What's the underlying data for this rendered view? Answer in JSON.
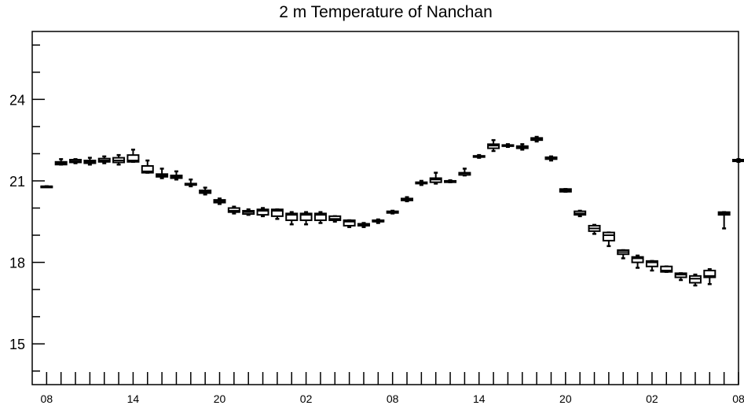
{
  "chart_data": {
    "type": "boxplot",
    "title": "2 m Temperature of Nanchan",
    "xlabel": "",
    "ylabel": "",
    "ylim": [
      13.5,
      26.5
    ],
    "xlim": [
      -1,
      48
    ],
    "y_ticks": [
      15,
      18,
      21,
      24
    ],
    "y_tick_labels": [
      "15",
      "18",
      "21",
      "24"
    ],
    "x_tick_labels": [
      {
        "x": 0,
        "label": "08"
      },
      {
        "x": 6,
        "label": "14"
      },
      {
        "x": 12,
        "label": "20"
      },
      {
        "x": 18,
        "label": "02"
      },
      {
        "x": 24,
        "label": "08"
      },
      {
        "x": 30,
        "label": "14"
      },
      {
        "x": 36,
        "label": "20"
      },
      {
        "x": 42,
        "label": "02"
      },
      {
        "x": 48,
        "label": "08"
      }
    ],
    "series": [
      {
        "x": 0,
        "min": 20.8,
        "q1": 20.8,
        "median": 20.8,
        "q3": 20.8,
        "max": 20.8
      },
      {
        "x": 1,
        "min": 21.6,
        "q1": 21.6,
        "median": 21.65,
        "q3": 21.7,
        "max": 21.8
      },
      {
        "x": 2,
        "min": 21.65,
        "q1": 21.68,
        "median": 21.72,
        "q3": 21.78,
        "max": 21.8
      },
      {
        "x": 3,
        "min": 21.6,
        "q1": 21.65,
        "median": 21.7,
        "q3": 21.75,
        "max": 21.85
      },
      {
        "x": 4,
        "min": 21.65,
        "q1": 21.7,
        "median": 21.75,
        "q3": 21.82,
        "max": 21.9
      },
      {
        "x": 5,
        "min": 21.6,
        "q1": 21.68,
        "median": 21.75,
        "q3": 21.85,
        "max": 21.95
      },
      {
        "x": 6,
        "min": 21.7,
        "q1": 21.7,
        "median": 21.75,
        "q3": 21.95,
        "max": 22.15
      },
      {
        "x": 7,
        "min": 21.3,
        "q1": 21.3,
        "median": 21.35,
        "q3": 21.55,
        "max": 21.75
      },
      {
        "x": 8,
        "min": 21.1,
        "q1": 21.15,
        "median": 21.2,
        "q3": 21.25,
        "max": 21.45
      },
      {
        "x": 9,
        "min": 21.05,
        "q1": 21.1,
        "median": 21.15,
        "q3": 21.2,
        "max": 21.35
      },
      {
        "x": 10,
        "min": 20.8,
        "q1": 20.85,
        "median": 20.85,
        "q3": 20.9,
        "max": 21.05
      },
      {
        "x": 11,
        "min": 20.5,
        "q1": 20.55,
        "median": 20.6,
        "q3": 20.65,
        "max": 20.75
      },
      {
        "x": 12,
        "min": 20.15,
        "q1": 20.2,
        "median": 20.25,
        "q3": 20.3,
        "max": 20.35
      },
      {
        "x": 13,
        "min": 19.8,
        "q1": 19.85,
        "median": 19.9,
        "q3": 20.0,
        "max": 20.05
      },
      {
        "x": 14,
        "min": 19.75,
        "q1": 19.78,
        "median": 19.85,
        "q3": 19.9,
        "max": 19.95
      },
      {
        "x": 15,
        "min": 19.7,
        "q1": 19.75,
        "median": 19.9,
        "q3": 19.95,
        "max": 20.0
      },
      {
        "x": 16,
        "min": 19.6,
        "q1": 19.7,
        "median": 19.9,
        "q3": 19.95,
        "max": 19.95
      },
      {
        "x": 17,
        "min": 19.4,
        "q1": 19.55,
        "median": 19.75,
        "q3": 19.8,
        "max": 19.85
      },
      {
        "x": 18,
        "min": 19.4,
        "q1": 19.55,
        "median": 19.75,
        "q3": 19.8,
        "max": 19.85
      },
      {
        "x": 19,
        "min": 19.45,
        "q1": 19.55,
        "median": 19.75,
        "q3": 19.8,
        "max": 19.85
      },
      {
        "x": 20,
        "min": 19.5,
        "q1": 19.55,
        "median": 19.6,
        "q3": 19.7,
        "max": 19.7
      },
      {
        "x": 21,
        "min": 19.3,
        "q1": 19.35,
        "median": 19.5,
        "q3": 19.55,
        "max": 19.55
      },
      {
        "x": 22,
        "min": 19.3,
        "q1": 19.35,
        "median": 19.4,
        "q3": 19.42,
        "max": 19.45
      },
      {
        "x": 23,
        "min": 19.45,
        "q1": 19.5,
        "median": 19.5,
        "q3": 19.55,
        "max": 19.58
      },
      {
        "x": 24,
        "min": 19.8,
        "q1": 19.82,
        "median": 19.85,
        "q3": 19.88,
        "max": 19.9
      },
      {
        "x": 25,
        "min": 20.25,
        "q1": 20.28,
        "median": 20.32,
        "q3": 20.35,
        "max": 20.4
      },
      {
        "x": 26,
        "min": 20.85,
        "q1": 20.9,
        "median": 20.92,
        "q3": 20.95,
        "max": 21.0
      },
      {
        "x": 27,
        "min": 20.9,
        "q1": 20.95,
        "median": 21.05,
        "q3": 21.1,
        "max": 21.3
      },
      {
        "x": 28,
        "min": 20.95,
        "q1": 20.95,
        "median": 21.0,
        "q3": 21.0,
        "max": 21.02
      },
      {
        "x": 29,
        "min": 21.2,
        "q1": 21.22,
        "median": 21.28,
        "q3": 21.3,
        "max": 21.45
      },
      {
        "x": 30,
        "min": 21.85,
        "q1": 21.88,
        "median": 21.9,
        "q3": 21.92,
        "max": 21.95
      },
      {
        "x": 31,
        "min": 22.1,
        "q1": 22.2,
        "median": 22.3,
        "q3": 22.35,
        "max": 22.5
      },
      {
        "x": 32,
        "min": 22.25,
        "q1": 22.28,
        "median": 22.3,
        "q3": 22.32,
        "max": 22.35
      },
      {
        "x": 33,
        "min": 22.15,
        "q1": 22.2,
        "median": 22.25,
        "q3": 22.28,
        "max": 22.35
      },
      {
        "x": 34,
        "min": 22.45,
        "q1": 22.5,
        "median": 22.55,
        "q3": 22.58,
        "max": 22.62
      },
      {
        "x": 35,
        "min": 21.75,
        "q1": 21.8,
        "median": 21.85,
        "q3": 21.87,
        "max": 21.9
      },
      {
        "x": 36,
        "min": 20.6,
        "q1": 20.6,
        "median": 20.65,
        "q3": 20.7,
        "max": 20.7
      },
      {
        "x": 37,
        "min": 19.7,
        "q1": 19.75,
        "median": 19.8,
        "q3": 19.88,
        "max": 19.9
      },
      {
        "x": 38,
        "min": 19.05,
        "q1": 19.15,
        "median": 19.25,
        "q3": 19.35,
        "max": 19.38
      },
      {
        "x": 39,
        "min": 18.6,
        "q1": 18.8,
        "median": 19.0,
        "q3": 19.1,
        "max": 19.1
      },
      {
        "x": 40,
        "min": 18.15,
        "q1": 18.3,
        "median": 18.38,
        "q3": 18.45,
        "max": 18.45
      },
      {
        "x": 41,
        "min": 17.8,
        "q1": 18.0,
        "median": 18.15,
        "q3": 18.2,
        "max": 18.25
      },
      {
        "x": 42,
        "min": 17.7,
        "q1": 17.85,
        "median": 18.0,
        "q3": 18.05,
        "max": 18.05
      },
      {
        "x": 43,
        "min": 17.65,
        "q1": 17.65,
        "median": 17.7,
        "q3": 17.85,
        "max": 17.85
      },
      {
        "x": 44,
        "min": 17.35,
        "q1": 17.45,
        "median": 17.55,
        "q3": 17.6,
        "max": 17.6
      },
      {
        "x": 45,
        "min": 17.15,
        "q1": 17.25,
        "median": 17.4,
        "q3": 17.5,
        "max": 17.55
      },
      {
        "x": 46,
        "min": 17.2,
        "q1": 17.45,
        "median": 17.5,
        "q3": 17.7,
        "max": 17.75
      },
      {
        "x": 47,
        "min": 19.25,
        "q1": 19.75,
        "median": 19.8,
        "q3": 19.85,
        "max": 19.85
      },
      {
        "x": 48,
        "min": 21.7,
        "q1": 21.72,
        "median": 21.75,
        "q3": 21.78,
        "max": 21.8
      }
    ]
  }
}
